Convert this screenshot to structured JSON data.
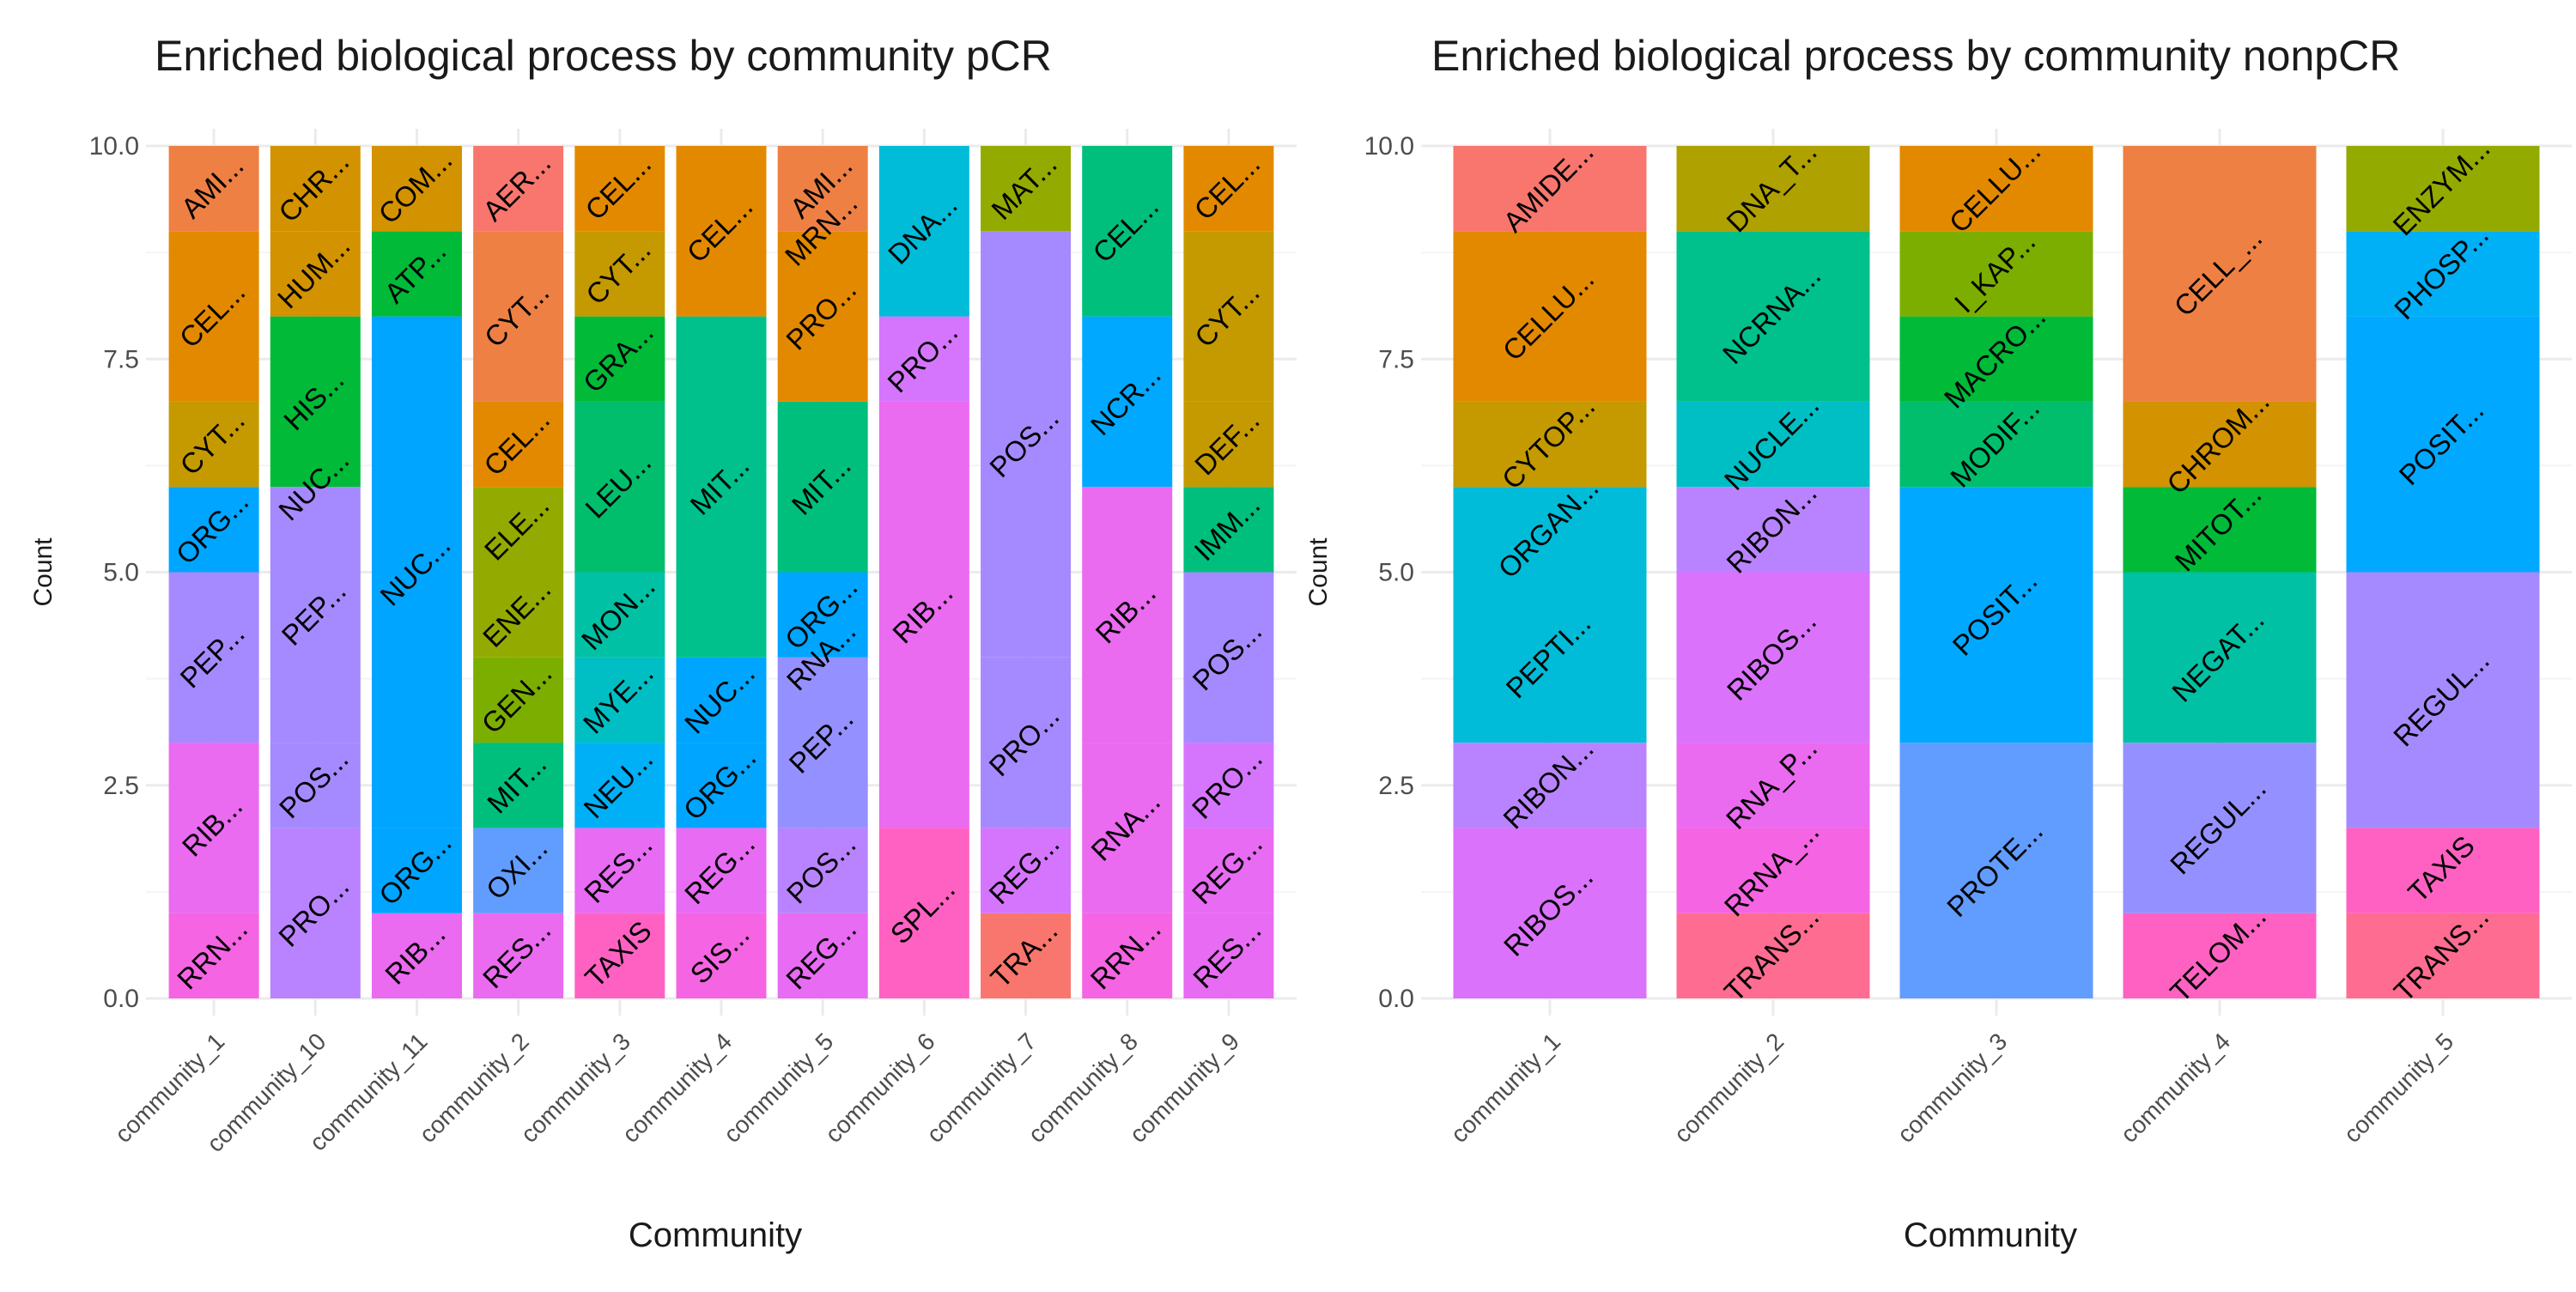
{
  "chart_data": [
    {
      "type": "bar",
      "stacked": true,
      "title": "Enriched biological process by community pCR",
      "xlabel": "Community",
      "ylabel": "Count",
      "ylim": [
        0,
        10
      ],
      "yticks": [
        "0.0",
        "2.5",
        "5.0",
        "7.5",
        "10.0"
      ],
      "grid": true,
      "legend": "none",
      "categories": [
        "community_1",
        "community_10",
        "community_11",
        "community_2",
        "community_3",
        "community_4",
        "community_5",
        "community_6",
        "community_7",
        "community_8",
        "community_9"
      ],
      "stacks": [
        [
          {
            "label": "RRN...",
            "value": 1,
            "color": "#F564E3"
          },
          {
            "label": "RIB...",
            "value": 2,
            "color": "#EA6AF0"
          },
          {
            "label": "PEP...",
            "value": 2,
            "color": "#A58AFF"
          },
          {
            "label": "ORG...",
            "value": 1,
            "color": "#00A5FF"
          },
          {
            "label": "CYT...",
            "value": 1,
            "color": "#C49A00"
          },
          {
            "label": "CEL...",
            "value": 2,
            "color": "#E38900"
          },
          {
            "label": "AMI...",
            "value": 1,
            "color": "#EE8044"
          }
        ],
        [
          {
            "label": "PRO...",
            "value": 2,
            "color": "#B983FF"
          },
          {
            "label": "POS...",
            "value": 1,
            "color": "#A58AFF"
          },
          {
            "label": "PEP...",
            "value": 3,
            "color": "#A58AFF"
          },
          {
            "label": "NUC...",
            "value": 0,
            "color": "#00B8E7"
          },
          {
            "label": "HIS...",
            "value": 2,
            "color": "#00BA38"
          },
          {
            "label": "HUM...",
            "value": 1,
            "color": "#D39200"
          },
          {
            "label": "CHR...",
            "value": 1,
            "color": "#D39200"
          }
        ],
        [
          {
            "label": "RIB...",
            "value": 1,
            "color": "#EA6AF0"
          },
          {
            "label": "ORG...",
            "value": 1,
            "color": "#00A5FF"
          },
          {
            "label": "NUC...",
            "value": 6,
            "color": "#00A5FF"
          },
          {
            "label": "ATP...",
            "value": 1,
            "color": "#00BA38"
          },
          {
            "label": "COM...",
            "value": 1,
            "color": "#D39200"
          }
        ],
        [
          {
            "label": "RES...",
            "value": 1,
            "color": "#EA6AF0"
          },
          {
            "label": "OXI...",
            "value": 1,
            "color": "#619CFF"
          },
          {
            "label": "MIT...",
            "value": 1,
            "color": "#00BF7D"
          },
          {
            "label": "GEN...",
            "value": 1,
            "color": "#7CAE00"
          },
          {
            "label": "ENE...",
            "value": 1,
            "color": "#93AA00"
          },
          {
            "label": "ELE...",
            "value": 1,
            "color": "#93AA00"
          },
          {
            "label": "CEL...",
            "value": 1,
            "color": "#E38900"
          },
          {
            "label": "CYT...",
            "value": 2,
            "color": "#EE8044"
          },
          {
            "label": "AER...",
            "value": 1,
            "color": "#F8766D"
          }
        ],
        [
          {
            "label": "TAXIS",
            "value": 1,
            "color": "#FF61C3"
          },
          {
            "label": "RES...",
            "value": 1,
            "color": "#E76BF3"
          },
          {
            "label": "NEU...",
            "value": 1,
            "color": "#00B0F6"
          },
          {
            "label": "MYE...",
            "value": 1,
            "color": "#00BFC4"
          },
          {
            "label": "MON...",
            "value": 1,
            "color": "#00C1A3"
          },
          {
            "label": "LEU...",
            "value": 2,
            "color": "#00BE6C"
          },
          {
            "label": "GRA...",
            "value": 1,
            "color": "#00BA38"
          },
          {
            "label": "CYT...",
            "value": 1,
            "color": "#C49A00"
          },
          {
            "label": "CEL...",
            "value": 1,
            "color": "#E38900"
          }
        ],
        [
          {
            "label": "SIS...",
            "value": 1,
            "color": "#F564E3"
          },
          {
            "label": "REG...",
            "value": 1,
            "color": "#E76BF3"
          },
          {
            "label": "ORG...",
            "value": 1,
            "color": "#00A5FF"
          },
          {
            "label": "NUC...",
            "value": 1,
            "color": "#00A5FF"
          },
          {
            "label": "MIT...",
            "value": 4,
            "color": "#00C08B"
          },
          {
            "label": "CEL...",
            "value": 2,
            "color": "#E38900"
          }
        ],
        [
          {
            "label": "REG...",
            "value": 1,
            "color": "#E76BF3"
          },
          {
            "label": "POS...",
            "value": 1,
            "color": "#B983FF"
          },
          {
            "label": "PEP...",
            "value": 2,
            "color": "#9590FF"
          },
          {
            "label": "RNA...",
            "value": 0,
            "color": "#9590FF"
          },
          {
            "label": "ORG...",
            "value": 1,
            "color": "#00A5FF"
          },
          {
            "label": "MIT...",
            "value": 2,
            "color": "#00BF7D"
          },
          {
            "label": "PRO...",
            "value": 2,
            "color": "#E38900"
          },
          {
            "label": "MRN...",
            "value": 0,
            "color": "#E38900"
          },
          {
            "label": "AMI...",
            "value": 1,
            "color": "#EE8044"
          }
        ],
        [
          {
            "label": "SPL...",
            "value": 2,
            "color": "#FF61C3"
          },
          {
            "label": "RIB...",
            "value": 5,
            "color": "#EA6AF0"
          },
          {
            "label": "PRO...",
            "value": 1,
            "color": "#D575FE"
          },
          {
            "label": "DNA...",
            "value": 2,
            "color": "#00BCD8"
          }
        ],
        [
          {
            "label": "TRA...",
            "value": 1,
            "color": "#F8766D"
          },
          {
            "label": "REG...",
            "value": 1,
            "color": "#D575FE"
          },
          {
            "label": "PRO...",
            "value": 2,
            "color": "#A58AFF"
          },
          {
            "label": "POS...",
            "value": 5,
            "color": "#A58AFF"
          },
          {
            "label": "MAT...",
            "value": 1,
            "color": "#93AA00"
          }
        ],
        [
          {
            "label": "RRN...",
            "value": 1,
            "color": "#F564E3"
          },
          {
            "label": "RNA...",
            "value": 2,
            "color": "#EA6AF0"
          },
          {
            "label": "RIB...",
            "value": 3,
            "color": "#EA6AF0"
          },
          {
            "label": "NCR...",
            "value": 2,
            "color": "#00A9FF"
          },
          {
            "label": "CEL...",
            "value": 2,
            "color": "#00BF7D"
          }
        ],
        [
          {
            "label": "RES...",
            "value": 1,
            "color": "#E76BF3"
          },
          {
            "label": "REG...",
            "value": 1,
            "color": "#E76BF3"
          },
          {
            "label": "PRO...",
            "value": 1,
            "color": "#D575FE"
          },
          {
            "label": "POS...",
            "value": 2,
            "color": "#A58AFF"
          },
          {
            "label": "IMM...",
            "value": 1,
            "color": "#00BF7D"
          },
          {
            "label": "DEF...",
            "value": 1,
            "color": "#C49A00"
          },
          {
            "label": "CYT...",
            "value": 2,
            "color": "#C49A00"
          },
          {
            "label": "CEL...",
            "value": 1,
            "color": "#E38900"
          }
        ]
      ]
    },
    {
      "type": "bar",
      "stacked": true,
      "title": "Enriched biological process by community nonpCR",
      "xlabel": "Community",
      "ylabel": "Count",
      "ylim": [
        0,
        10
      ],
      "yticks": [
        "0.0",
        "2.5",
        "5.0",
        "7.5",
        "10.0"
      ],
      "grid": true,
      "legend": "none",
      "categories": [
        "community_1",
        "community_2",
        "community_3",
        "community_4",
        "community_5"
      ],
      "stacks": [
        [
          {
            "label": "RIBOS...",
            "value": 2,
            "color": "#DB72FB"
          },
          {
            "label": "RIBON...",
            "value": 1,
            "color": "#B983FF"
          },
          {
            "label": "PEPTI...",
            "value": 2,
            "color": "#00BCD8"
          },
          {
            "label": "ORGAN...",
            "value": 1,
            "color": "#00BCD8"
          },
          {
            "label": "CYTOP...",
            "value": 1,
            "color": "#C49A00"
          },
          {
            "label": "CELLU...",
            "value": 2,
            "color": "#E38900"
          },
          {
            "label": "AMIDE...",
            "value": 1,
            "color": "#F8766D"
          }
        ],
        [
          {
            "label": "TRANS...",
            "value": 1,
            "color": "#FF6C91"
          },
          {
            "label": "RRNA_...",
            "value": 1,
            "color": "#F564E3"
          },
          {
            "label": "RNA_P...",
            "value": 1,
            "color": "#EA6AF0"
          },
          {
            "label": "RIBOS...",
            "value": 2,
            "color": "#DB72FB"
          },
          {
            "label": "RIBON...",
            "value": 1,
            "color": "#B983FF"
          },
          {
            "label": "NUCLE...",
            "value": 1,
            "color": "#00BFC4"
          },
          {
            "label": "NCRNA...",
            "value": 2,
            "color": "#00C08B"
          },
          {
            "label": "DNA_T...",
            "value": 1,
            "color": "#AFA100"
          }
        ],
        [
          {
            "label": "PROTE...",
            "value": 3,
            "color": "#619CFF"
          },
          {
            "label": "POSIT...",
            "value": 3,
            "color": "#00A9FF"
          },
          {
            "label": "MODIF...",
            "value": 1,
            "color": "#00BE6C"
          },
          {
            "label": "MACRO...",
            "value": 1,
            "color": "#00BA38"
          },
          {
            "label": "I_KAP...",
            "value": 1,
            "color": "#7CAE00"
          },
          {
            "label": "CELLU...",
            "value": 1,
            "color": "#E38900"
          }
        ],
        [
          {
            "label": "TELOM...",
            "value": 1,
            "color": "#FF61C3"
          },
          {
            "label": "REGUL...",
            "value": 2,
            "color": "#9590FF"
          },
          {
            "label": "NEGAT...",
            "value": 2,
            "color": "#00C1A3"
          },
          {
            "label": "MITOT...",
            "value": 1,
            "color": "#00BA38"
          },
          {
            "label": "CHROM...",
            "value": 1,
            "color": "#D39200"
          },
          {
            "label": "CELL_...",
            "value": 3,
            "color": "#EE8044"
          }
        ],
        [
          {
            "label": "TRANS...",
            "value": 1,
            "color": "#FF6C91"
          },
          {
            "label": "TAXIS",
            "value": 1,
            "color": "#FF61C3"
          },
          {
            "label": "REGUL...",
            "value": 3,
            "color": "#A58AFF"
          },
          {
            "label": "POSIT...",
            "value": 3,
            "color": "#00A9FF"
          },
          {
            "label": "PHOSP...",
            "value": 1,
            "color": "#00B0F6"
          },
          {
            "label": "ENZYM...",
            "value": 1,
            "color": "#93AA00"
          }
        ]
      ]
    }
  ]
}
